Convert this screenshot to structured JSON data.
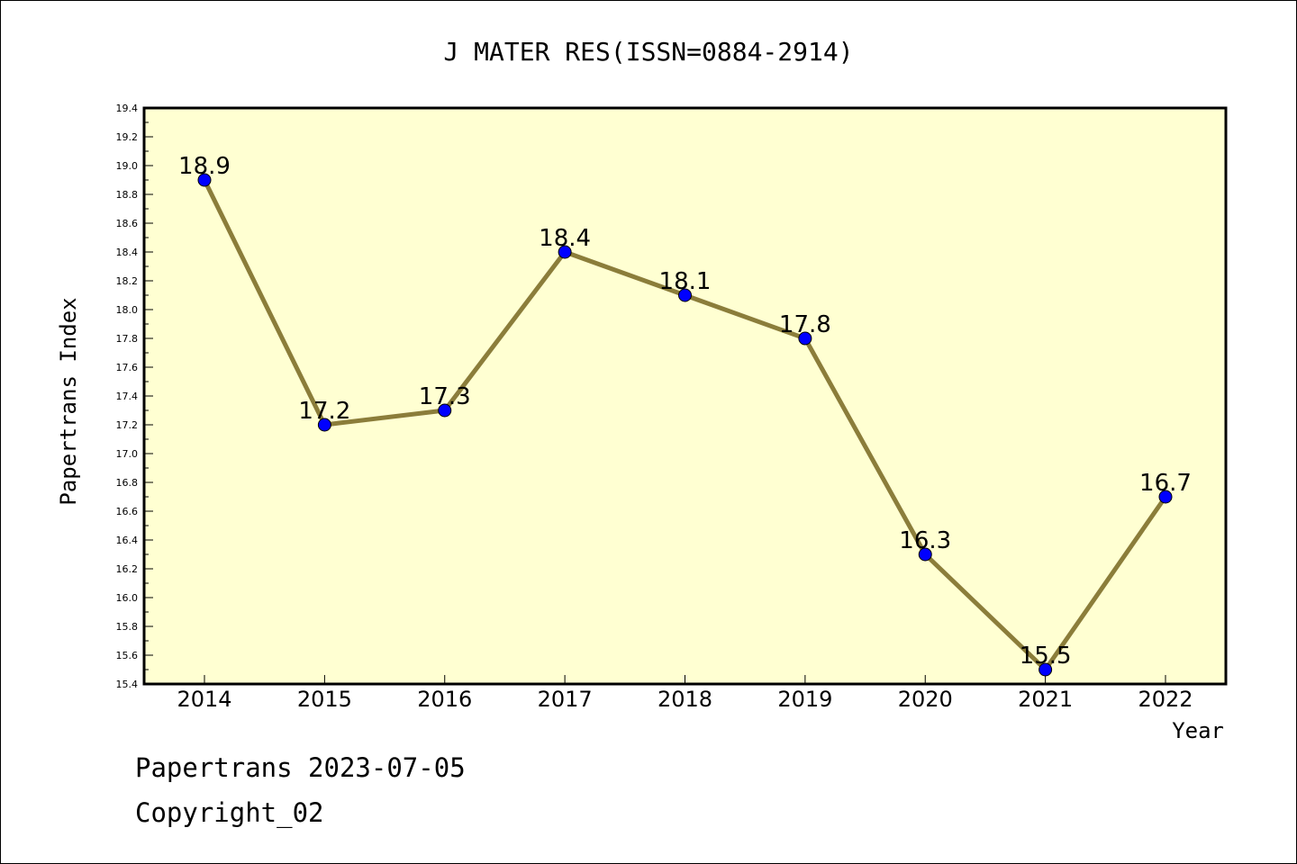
{
  "chart_data": {
    "type": "line",
    "title": "J MATER RES(ISSN=0884-2914)",
    "xlabel": "Year",
    "ylabel": "Papertrans Index",
    "categories": [
      "2014",
      "2015",
      "2016",
      "2017",
      "2018",
      "2019",
      "2020",
      "2021",
      "2022"
    ],
    "series": [
      {
        "values": [
          18.9,
          17.2,
          17.3,
          18.4,
          18.1,
          17.8,
          16.3,
          15.5,
          16.7
        ]
      }
    ],
    "data_labels": [
      "18.9",
      "17.2",
      "17.3",
      "18.4",
      "18.1",
      "17.8",
      "16.3",
      "15.5",
      "16.7"
    ],
    "ylim": [
      15.4,
      19.4
    ],
    "ytick_step": 0.2,
    "ytick_labels": [
      "15.4",
      "15.6",
      "15.8",
      "16.0",
      "16.2",
      "16.4",
      "16.6",
      "16.8",
      "17.0",
      "17.2",
      "17.4",
      "17.6",
      "17.8",
      "18.0",
      "18.2",
      "18.4",
      "18.6",
      "18.8",
      "19.0",
      "19.2",
      "19.4"
    ],
    "grid": false,
    "legend": "none",
    "colors": {
      "plot_background": "#ffffd2",
      "line": "#8b7d3a",
      "marker": "#0000ff",
      "frame": "#000000"
    }
  },
  "footer": {
    "source_line": "Papertrans 2023-07-05",
    "copyright_line": "Copyright_02"
  }
}
